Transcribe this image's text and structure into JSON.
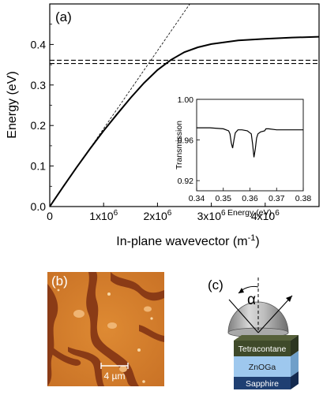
{
  "panel_a": {
    "label": "(a)",
    "chart_data": {
      "type": "line",
      "xlabel_main": "In-plane wavevector (m",
      "xlabel_sup": "-1",
      "xlabel_end": ")",
      "ylabel": "Energy (eV)",
      "xlim": [
        0,
        5000000
      ],
      "ylim": [
        0,
        0.5
      ],
      "x_ticks": [
        {
          "v": 0,
          "label": "0",
          "exp": ""
        },
        {
          "v": 1000000,
          "label": "1x10",
          "exp": "6"
        },
        {
          "v": 2000000,
          "label": "2x10",
          "exp": "6"
        },
        {
          "v": 3000000,
          "label": "3x10",
          "exp": "6"
        },
        {
          "v": 4000000,
          "label": "4x10",
          "exp": "6"
        }
      ],
      "y_ticks": [
        {
          "v": 0.0,
          "label": "0.0"
        },
        {
          "v": 0.1,
          "label": "0.1"
        },
        {
          "v": 0.2,
          "label": "0.2"
        },
        {
          "v": 0.3,
          "label": "0.3"
        },
        {
          "v": 0.4,
          "label": "0.4"
        }
      ],
      "series": [
        {
          "style": "solid",
          "x": [
            0,
            250000,
            500000,
            750000,
            1000000,
            1250000,
            1500000,
            1750000,
            2000000,
            2250000,
            2500000,
            2750000,
            3000000,
            3500000,
            4000000,
            4500000,
            5000000
          ],
          "y": [
            0,
            0.049,
            0.097,
            0.143,
            0.187,
            0.228,
            0.268,
            0.305,
            0.337,
            0.362,
            0.381,
            0.393,
            0.401,
            0.41,
            0.414,
            0.417,
            0.419
          ]
        },
        {
          "style": "dashed-thin",
          "x": [
            0,
            2600000
          ],
          "y": [
            0,
            0.5
          ]
        },
        {
          "style": "dashed",
          "x": [
            0,
            5000000
          ],
          "y": [
            0.353,
            0.353
          ]
        },
        {
          "style": "dashed",
          "x": [
            0,
            5000000
          ],
          "y": [
            0.361,
            0.361
          ]
        }
      ]
    },
    "inset": {
      "chart_data": {
        "type": "line",
        "xlabel": "Energy (eV)",
        "ylabel": "Transmission",
        "xlim": [
          0.34,
          0.38
        ],
        "ylim": [
          0.91,
          1.0
        ],
        "x_ticks": [
          {
            "v": 0.34,
            "label": "0.34"
          },
          {
            "v": 0.35,
            "label": "0.35"
          },
          {
            "v": 0.36,
            "label": "0.36"
          },
          {
            "v": 0.37,
            "label": "0.37"
          },
          {
            "v": 0.38,
            "label": "0.38"
          }
        ],
        "y_ticks": [
          {
            "v": 0.92,
            "label": "0.92"
          },
          {
            "v": 0.96,
            "label": "0.96"
          },
          {
            "v": 1.0,
            "label": "1.00"
          }
        ],
        "series": [
          {
            "x": [
              0.34,
              0.345,
              0.35,
              0.352,
              0.3525,
              0.353,
              0.3535,
              0.354,
              0.3545,
              0.3555,
              0.357,
              0.359,
              0.3605,
              0.361,
              0.3615,
              0.362,
              0.3625,
              0.363,
              0.364,
              0.3655,
              0.366,
              0.367,
              0.37,
              0.375,
              0.38
            ],
            "y": [
              0.972,
              0.972,
              0.971,
              0.969,
              0.966,
              0.957,
              0.952,
              0.96,
              0.967,
              0.97,
              0.97,
              0.969,
              0.966,
              0.956,
              0.943,
              0.951,
              0.962,
              0.966,
              0.968,
              0.969,
              0.971,
              0.971,
              0.97,
              0.97,
              0.97
            ]
          }
        ]
      }
    }
  },
  "panel_b": {
    "label": "(b)",
    "scale_bar_label": "4 µm",
    "colors": {
      "terrace_light": "#d9822b",
      "terrace_dark": "#8a3b16",
      "bright_spot": "#f7d7a6"
    }
  },
  "panel_c": {
    "label": "(c)",
    "angle_symbol": "α",
    "layers": [
      {
        "name": "Tetracontane",
        "front": "#3f4a2a",
        "top": "#56603a",
        "side": "#2c3520"
      },
      {
        "name": "ZnOGa",
        "front": "#9ec8ee",
        "top": "#bcdcf6",
        "side": "#6f9fc9"
      },
      {
        "name": "Sapphire",
        "front": "#1f3f72",
        "top": "#2f5590",
        "side": "#142a4f"
      }
    ]
  }
}
